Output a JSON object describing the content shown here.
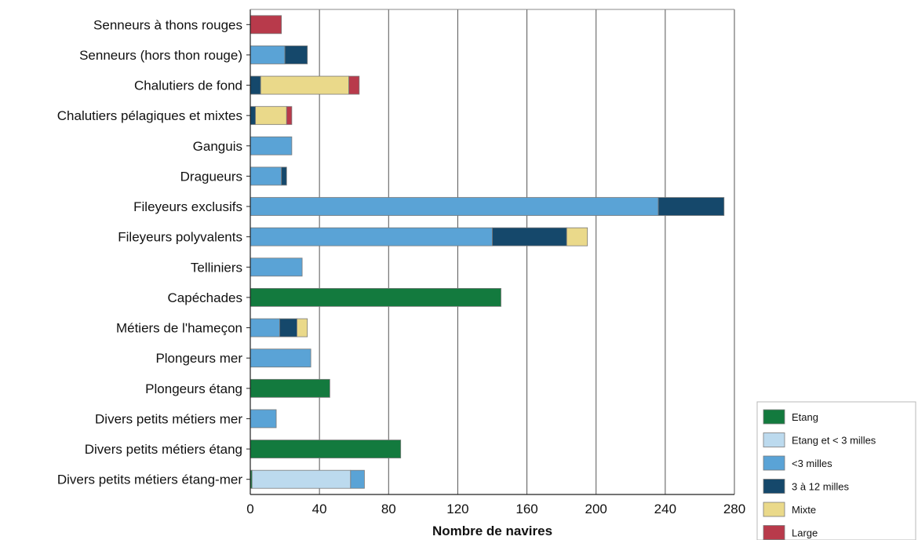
{
  "chart_data": {
    "type": "bar",
    "orientation": "horizontal",
    "stacked": true,
    "title": "",
    "xlabel": "Nombre de navires",
    "ylabel": "",
    "xlim": [
      0,
      280
    ],
    "x_ticks": [
      "0",
      "40",
      "80",
      "120",
      "160",
      "200",
      "240",
      "280"
    ],
    "grid": "vertical",
    "legend_position": "bottom-right",
    "categories": [
      "Senneurs à thons rouges",
      "Senneurs (hors thon rouge)",
      "Chalutiers de fond",
      "Chalutiers pélagiques et mixtes",
      "Ganguis",
      "Dragueurs",
      "Fileyeurs exclusifs",
      "Fileyeurs polyvalents",
      "Telliniers",
      "Capéchades",
      "Métiers de l'hameçon",
      "Plongeurs mer",
      "Plongeurs étang",
      "Divers petits métiers mer",
      "Divers petits métiers étang",
      "Divers petits métiers étang-mer"
    ],
    "series": [
      {
        "name": "Etang",
        "color": "#137a3e",
        "values": [
          0,
          0,
          0,
          0,
          0,
          0,
          0,
          0,
          0,
          145,
          0,
          0,
          46,
          0,
          87,
          1
        ]
      },
      {
        "name": "Etang et < 3 milles",
        "color": "#bcdaee",
        "values": [
          0,
          0,
          0,
          0,
          0,
          0,
          0,
          0,
          0,
          0,
          0,
          0,
          0,
          0,
          0,
          57
        ]
      },
      {
        "name": "<3 milles",
        "color": "#5aa3d6",
        "values": [
          0,
          20,
          0,
          0,
          24,
          18,
          236,
          140,
          30,
          0,
          17,
          35,
          0,
          15,
          0,
          8
        ]
      },
      {
        "name": "3 à 12 milles",
        "color": "#15486b",
        "values": [
          0,
          13,
          6,
          3,
          0,
          3,
          38,
          43,
          0,
          0,
          10,
          0,
          0,
          0,
          0,
          0
        ]
      },
      {
        "name": "Mixte",
        "color": "#ead98a",
        "values": [
          0,
          0,
          51,
          18,
          0,
          0,
          0,
          12,
          0,
          0,
          6,
          0,
          0,
          0,
          0,
          0
        ]
      },
      {
        "name": "Large",
        "color": "#b83a4b",
        "values": [
          18,
          0,
          6,
          3,
          0,
          0,
          0,
          0,
          0,
          0,
          0,
          0,
          0,
          0,
          0,
          0
        ]
      }
    ]
  }
}
